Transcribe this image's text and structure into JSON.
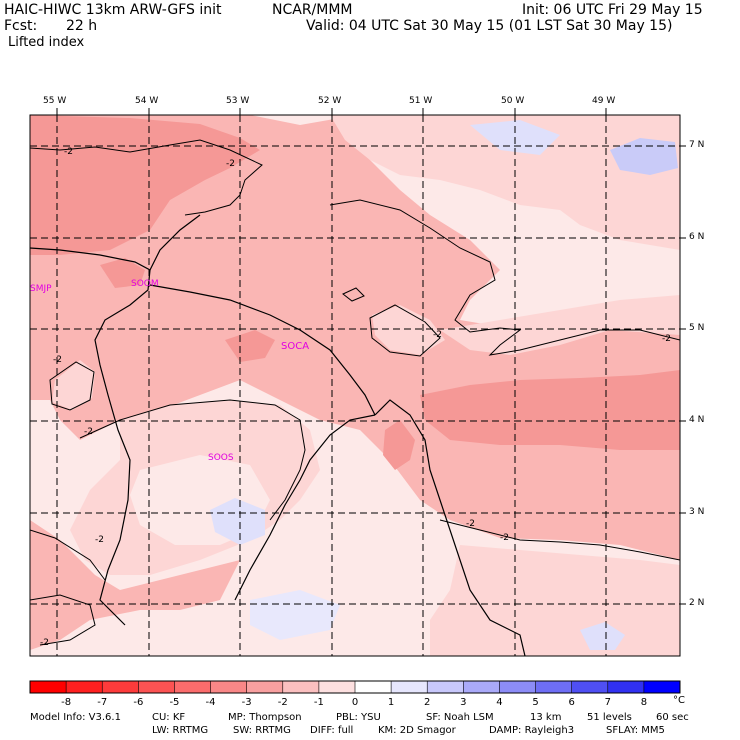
{
  "header": {
    "model_line": "HAIC-HIWC 13km ARW-GFS init",
    "org": "NCAR/MMM",
    "init": "Init: 06 UTC Fri 29 May 15",
    "fcst_label": "Fcst:",
    "fcst_value": "22 h",
    "valid": "Valid: 04 UTC Sat 30 May 15 (01 LST Sat 30 May 15)",
    "field": "Lifted index"
  },
  "map": {
    "lon_labels": [
      "55 W",
      "54 W",
      "53 W",
      "52 W",
      "51 W",
      "50 W",
      "49 W"
    ],
    "lat_labels": [
      "7 N",
      "6 N",
      "5 N",
      "4 N",
      "3 N",
      "2 N"
    ],
    "stations": [
      "SMJP",
      "SOCA",
      "SOOS",
      "SOOM"
    ],
    "contour_label": "-2",
    "colors": {
      "neg_strong": "#f59896",
      "neg_mid": "#fab6b4",
      "neg_light": "#fdd6d5",
      "neg_faint": "#fde9e8",
      "pos_light": "#dfe0fb",
      "station": "#e100e1"
    }
  },
  "colorbar": {
    "ticks": [
      "-8",
      "-7",
      "-6",
      "-5",
      "-4",
      "-3",
      "-2",
      "-1",
      "0",
      "1",
      "2",
      "3",
      "4",
      "5",
      "6",
      "7",
      "8"
    ],
    "unit": "°C",
    "colors": [
      "#ff0000",
      "#ff2020",
      "#fd3b3b",
      "#fc5353",
      "#fb6c6c",
      "#f98787",
      "#f8a0a0",
      "#fbc0c0",
      "#fde0e0",
      "#ffffff",
      "#e6e6fd",
      "#c8c8fb",
      "#aaaaf9",
      "#8c8cf7",
      "#6e6ef5",
      "#4f4ff3",
      "#3131f1",
      "#0000ff"
    ]
  },
  "footer": {
    "line1": [
      "Model Info: V3.6.1",
      "CU: KF",
      "MP: Thompson",
      "PBL: YSU",
      "SF: Noah LSM",
      "13 km",
      "51 levels",
      "60 sec"
    ],
    "line2": [
      "LW: RRTMG",
      "SW: RRTMG",
      "DIFF: full",
      "KM: 2D Smagor",
      "DAMP: Rayleigh3",
      "SFLAY: MM5"
    ]
  }
}
